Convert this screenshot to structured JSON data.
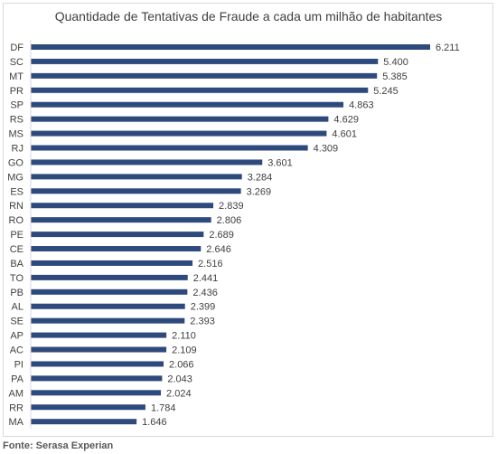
{
  "chart_data": {
    "type": "bar",
    "orientation": "horizontal",
    "title": "Quantidade de Tentativas de Fraude a cada um milhão de habitantes",
    "categories": [
      "DF",
      "SC",
      "MT",
      "PR",
      "SP",
      "RS",
      "MS",
      "RJ",
      "GO",
      "MG",
      "ES",
      "RN",
      "RO",
      "PE",
      "CE",
      "BA",
      "TO",
      "PB",
      "AL",
      "SE",
      "AP",
      "AC",
      "PI",
      "PA",
      "AM",
      "RR",
      "MA"
    ],
    "values": [
      6211,
      5400,
      5385,
      5245,
      4863,
      4629,
      4601,
      4309,
      3601,
      3284,
      3269,
      2839,
      2806,
      2689,
      2646,
      2516,
      2441,
      2436,
      2399,
      2393,
      2110,
      2109,
      2066,
      2043,
      2024,
      1784,
      1646
    ],
    "value_labels": [
      "6.211",
      "5.400",
      "5.385",
      "5.245",
      "4.863",
      "4.629",
      "4.601",
      "4.309",
      "3.601",
      "3.284",
      "3.269",
      "2.839",
      "2.806",
      "2.689",
      "2.646",
      "2.516",
      "2.441",
      "2.436",
      "2.399",
      "2.393",
      "2.110",
      "2.109",
      "2.066",
      "2.043",
      "2.024",
      "1.784",
      "1.646"
    ],
    "bar_color": "#2e4a7d",
    "xlim": [
      0,
      6211
    ],
    "grid": false,
    "legend": "none"
  },
  "source": "Fonte: Serasa Experian"
}
